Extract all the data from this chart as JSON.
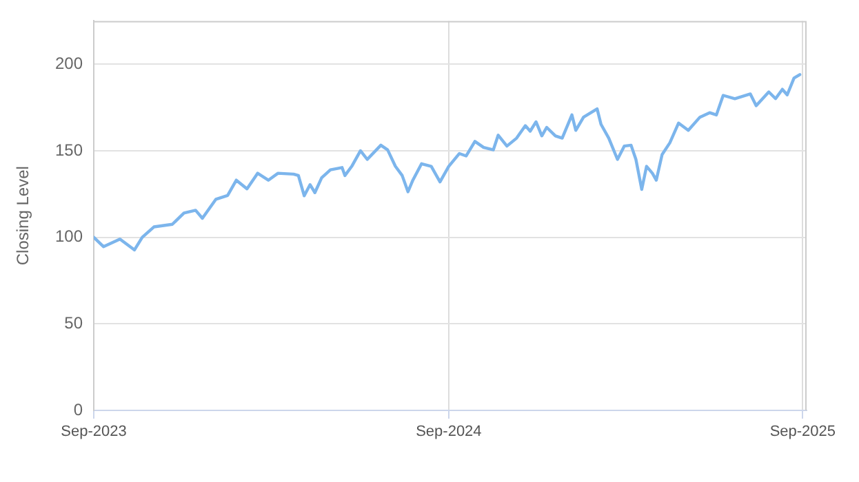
{
  "chart_data": {
    "type": "line",
    "ylabel": "Closing Level",
    "legend": false,
    "grid": true,
    "marker": "none",
    "line_style": "solid",
    "xlim": [
      "2023-09-01",
      "2025-09-05"
    ],
    "xticks": [
      {
        "value": "2023-09-01",
        "label": "Sep-2023"
      },
      {
        "value": "2024-09-01",
        "label": "Sep-2024"
      },
      {
        "value": "2025-09-01",
        "label": "Sep-2025"
      }
    ],
    "ylim": [
      0,
      225
    ],
    "yticks": [
      0,
      50,
      100,
      150,
      200
    ],
    "series": [
      {
        "color": "#7cb5ec",
        "x": [
          "2023-09-01",
          "2023-09-11",
          "2023-09-28",
          "2023-10-13",
          "2023-10-21",
          "2023-11-02",
          "2023-11-21",
          "2023-12-03",
          "2023-12-15",
          "2023-12-22",
          "2024-01-05",
          "2024-01-17",
          "2024-01-26",
          "2024-02-06",
          "2024-02-17",
          "2024-02-28",
          "2024-03-09",
          "2024-03-25",
          "2024-03-30",
          "2024-04-05",
          "2024-04-11",
          "2024-04-16",
          "2024-04-23",
          "2024-05-02",
          "2024-05-14",
          "2024-05-17",
          "2024-05-24",
          "2024-06-02",
          "2024-06-09",
          "2024-06-23",
          "2024-06-30",
          "2024-07-08",
          "2024-07-15",
          "2024-07-21",
          "2024-07-26",
          "2024-08-04",
          "2024-08-14",
          "2024-08-23",
          "2024-09-01",
          "2024-09-12",
          "2024-09-19",
          "2024-09-28",
          "2024-10-07",
          "2024-10-17",
          "2024-10-22",
          "2024-10-31",
          "2024-11-10",
          "2024-11-19",
          "2024-11-24",
          "2024-11-30",
          "2024-12-06",
          "2024-12-11",
          "2024-12-20",
          "2024-12-27",
          "2025-01-06",
          "2025-01-10",
          "2025-01-18",
          "2025-02-01",
          "2025-02-05",
          "2025-02-13",
          "2025-02-22",
          "2025-03-01",
          "2025-03-08",
          "2025-03-13",
          "2025-03-19",
          "2025-03-24",
          "2025-03-30",
          "2025-04-03",
          "2025-04-09",
          "2025-04-17",
          "2025-04-26",
          "2025-05-06",
          "2025-05-18",
          "2025-05-28",
          "2025-06-04",
          "2025-06-11",
          "2025-06-23",
          "2025-07-09",
          "2025-07-15",
          "2025-07-28",
          "2025-08-04",
          "2025-08-11",
          "2025-08-16",
          "2025-08-23",
          "2025-08-29"
        ],
        "values": [
          100,
          94.6,
          99,
          92.7,
          100,
          106,
          107.5,
          114,
          115.6,
          111,
          122,
          124.2,
          133,
          128,
          137,
          133,
          137,
          136.5,
          135.7,
          124,
          130.4,
          125.8,
          134.4,
          139,
          140.3,
          135.7,
          141,
          150,
          145,
          153.2,
          150.5,
          141,
          135.7,
          126.3,
          133,
          142.5,
          141,
          132,
          141,
          148.4,
          147,
          155.4,
          151.9,
          150.5,
          159,
          152.7,
          157.3,
          164.5,
          161.3,
          166.7,
          158.6,
          163.5,
          158.6,
          157.3,
          170.7,
          161.8,
          169.4,
          174.2,
          165.3,
          157.3,
          145,
          152.7,
          153.2,
          145,
          127.7,
          141,
          137,
          133,
          147.8,
          154.6,
          166,
          161.8,
          169.4,
          172,
          170.7,
          182,
          180.1,
          182.8,
          176,
          184,
          180.1,
          185.5,
          182.3,
          192,
          194
        ]
      }
    ]
  }
}
